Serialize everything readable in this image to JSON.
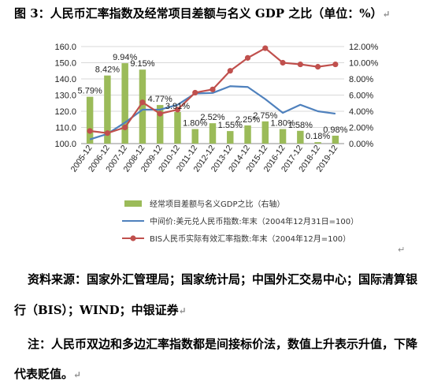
{
  "figure_title": "图 3：人民币汇率指数及经常项目差额与名义 GDP 之比（单位：%）",
  "chart_data": {
    "type": "bar+line",
    "categories": [
      "2005-12",
      "2006-12",
      "2007-12",
      "2008-12",
      "2009-12",
      "2010-12",
      "2011-12",
      "2012-12",
      "2013-12",
      "2014-12",
      "2015-12",
      "2016-12",
      "2017-12",
      "2018-12",
      "2019-12"
    ],
    "left_axis": {
      "ylim": [
        100,
        160
      ],
      "ticks": [
        "100.0",
        "110.0",
        "120.0",
        "130.0",
        "140.0",
        "150.0",
        "160.0"
      ]
    },
    "right_axis": {
      "ylim": [
        0,
        12
      ],
      "ticks": [
        "0.00%",
        "2.00%",
        "4.00%",
        "6.00%",
        "8.00%",
        "10.00%",
        "12.00%"
      ]
    },
    "series": [
      {
        "name": "经常项目差额与名义GDP之比（右轴）",
        "kind": "bar",
        "axis": "right",
        "color": "#9bbb59",
        "values": [
          5.79,
          8.42,
          9.94,
          9.15,
          4.77,
          3.91,
          1.8,
          2.52,
          1.55,
          2.25,
          2.75,
          1.8,
          1.58,
          0.18,
          0.98
        ],
        "labels": [
          "5.79%",
          "8.42%",
          "9.94%",
          "9.15%",
          "4.77%",
          "3.91%",
          "1.80%",
          "2.52%",
          "1.55%",
          "2.25%",
          "2.75%",
          "1.80%",
          "1.58%",
          "0.18%",
          "0.98%"
        ]
      },
      {
        "name": "中间价:美元兑人民币指数:年末（2004年12月31日=100）",
        "kind": "line",
        "axis": "left",
        "color": "#4f81bd",
        "values": [
          102.6,
          106.0,
          113.0,
          121.0,
          121.0,
          124.0,
          131.0,
          131.3,
          135.5,
          135.0,
          127.5,
          119.0,
          124.0,
          120.0,
          118.5
        ]
      },
      {
        "name": "BIS人民币实际有效汇率指数:年末（2004年12月=100）",
        "kind": "line",
        "axis": "left",
        "color": "#c0504d",
        "values": [
          107.8,
          106.5,
          110.0,
          125.5,
          118.5,
          121.0,
          131.5,
          133.5,
          145.0,
          153.0,
          159.0,
          150.0,
          149.0,
          147.5,
          149.0
        ]
      }
    ],
    "legend_position": "bottom"
  },
  "sources": {
    "line1": "资料来源：国家外汇管理局；国家统计局；中国外汇交易中心；国际清算银",
    "line2": "行（BIS）；WIND；中银证券",
    "note1": "注：人民币双边和多边汇率指数都是间接标价法，数值上升表示升值，下降",
    "note2": "代表贬值。"
  },
  "mark_glyph": "↵"
}
